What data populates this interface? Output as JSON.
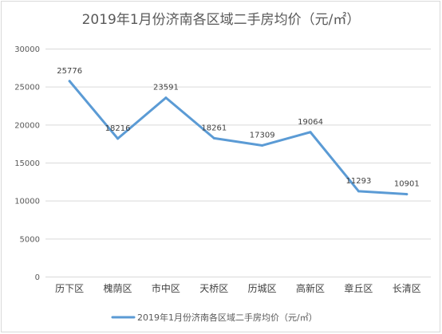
{
  "chart_data": {
    "type": "line",
    "title": "2019年1月份济南各区域二手房均价（元/㎡）",
    "xlabel": "",
    "ylabel": "",
    "categories": [
      "历下区",
      "槐荫区",
      "市中区",
      "天桥区",
      "历城区",
      "高新区",
      "章丘区",
      "长清区"
    ],
    "series": [
      {
        "name": "2019年1月份济南各区域二手房均价（元/㎡）",
        "values": [
          25776,
          18216,
          23591,
          18261,
          17309,
          19064,
          11293,
          10901
        ],
        "color": "#5b9bd5"
      }
    ],
    "ylim": [
      0,
      30000
    ],
    "yticks": [
      "0",
      "5000",
      "10000",
      "15000",
      "20000",
      "25000",
      "30000"
    ],
    "data_labels": [
      "25776",
      "18216",
      "23591",
      "18261",
      "17309",
      "19064",
      "11293",
      "10901"
    ],
    "grid": true,
    "gridline_color": "#d9d9d9",
    "legend_position": "bottom"
  }
}
